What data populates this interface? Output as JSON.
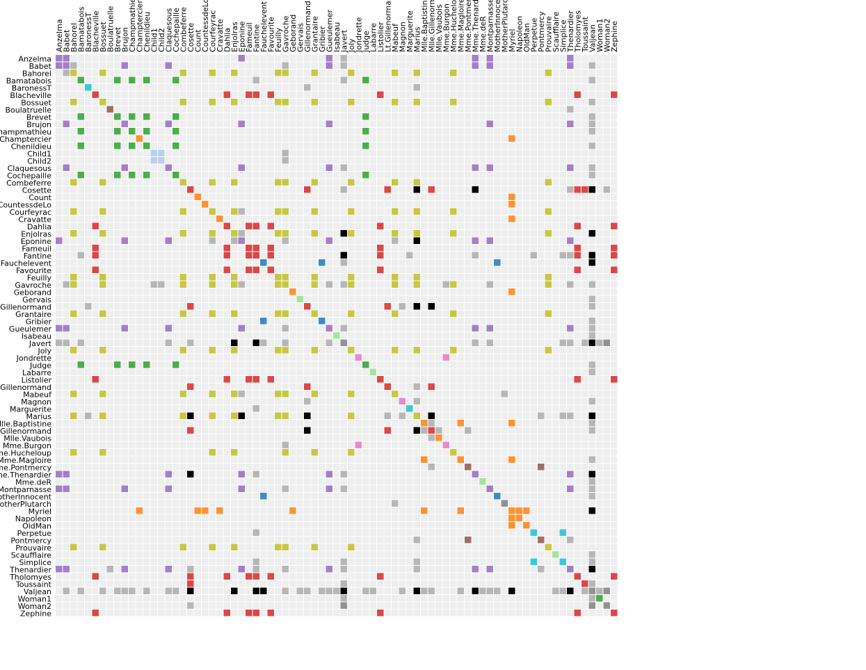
{
  "chart_data": {
    "type": "heatmap",
    "title": "",
    "labels": [
      "Anzelma",
      "Babet",
      "Bahorel",
      "Bamatabois",
      "BaronessT",
      "Blacheville",
      "Bossuet",
      "Boulatruelle",
      "Brevet",
      "Brujon",
      "Champmathieu",
      "Champtercier",
      "Chenildieu",
      "Child1",
      "Child2",
      "Claquesous",
      "Cochepaille",
      "Combeferre",
      "Cosette",
      "Count",
      "CountessdeLo",
      "Courfeyrac",
      "Cravatte",
      "Dahlia",
      "Enjolras",
      "Eponine",
      "Fameuil",
      "Fantine",
      "Fauchelevent",
      "Favourite",
      "Feuilly",
      "Gavroche",
      "Geborand",
      "Gervais",
      "Gillenormand",
      "Grantaire",
      "Gribier",
      "Gueulemer",
      "Isabeau",
      "Javert",
      "Joly",
      "Jondrette",
      "Judge",
      "Labarre",
      "Listolier",
      "Lt.Gillenormand",
      "Mabeuf",
      "Magnon",
      "Marguerite",
      "Marius",
      "Mlle.Baptistine",
      "Mlle.Gillenormand",
      "Mlle.Vaubois",
      "Mme.Burgon",
      "Mme.Hucheloup",
      "Mme.Magloire",
      "Mme.Pontmercy",
      "Mme.Thenardier",
      "Mme.deR",
      "Montparnasse",
      "MotherInnocent",
      "MotherPlutarch",
      "Myriel",
      "Napoleon",
      "OldMan",
      "Perpetue",
      "Pontmercy",
      "Prouvaire",
      "Scaufflaire",
      "Simplice",
      "Thenardier",
      "Tholomyes",
      "Toussaint",
      "Valjean",
      "Woman1",
      "Woman2",
      "Zephine"
    ],
    "groups": [
      4,
      4,
      8,
      2,
      9,
      3,
      8,
      5,
      2,
      4,
      2,
      1,
      2,
      10,
      10,
      4,
      2,
      8,
      3,
      1,
      1,
      8,
      1,
      3,
      8,
      4,
      3,
      3,
      0,
      3,
      8,
      8,
      1,
      11,
      3,
      8,
      0,
      4,
      11,
      7,
      8,
      6,
      2,
      11,
      3,
      3,
      8,
      6,
      9,
      8,
      1,
      3,
      1,
      6,
      8,
      1,
      5,
      4,
      11,
      4,
      0,
      7,
      1,
      1,
      1,
      9,
      5,
      8,
      11,
      9,
      4,
      3,
      3,
      7,
      2,
      7,
      3
    ],
    "group_colors": [
      "#1f77b4",
      "#ff7f0e",
      "#2ca02c",
      "#d62728",
      "#9467bd",
      "#8c564b",
      "#e377c2",
      "#7f7f7f",
      "#bcbd22",
      "#17becf",
      "#aec7e8",
      "#98df8a"
    ],
    "cross_group_color": "#a9a9a9",
    "empty_cell_color": "#eeeeee",
    "opacity_note": "",
    "links": [
      [
        0,
        0,
        1
      ],
      [
        0,
        1,
        1
      ],
      [
        0,
        25,
        1
      ],
      [
        0,
        37,
        1
      ],
      [
        0,
        39,
        1
      ],
      [
        0,
        57,
        1
      ],
      [
        0,
        59,
        1
      ],
      [
        0,
        70,
        1
      ],
      [
        1,
        1,
        1
      ],
      [
        1,
        2,
        1
      ],
      [
        1,
        9,
        1
      ],
      [
        1,
        15,
        1
      ],
      [
        1,
        31,
        1
      ],
      [
        1,
        37,
        1
      ],
      [
        1,
        39,
        1
      ],
      [
        1,
        57,
        1
      ],
      [
        1,
        59,
        1
      ],
      [
        1,
        70,
        1
      ],
      [
        1,
        73,
        1
      ],
      [
        2,
        2,
        1
      ],
      [
        2,
        6,
        1
      ],
      [
        2,
        17,
        1
      ],
      [
        2,
        21,
        1
      ],
      [
        2,
        24,
        1
      ],
      [
        2,
        30,
        1
      ],
      [
        2,
        31,
        1
      ],
      [
        2,
        35,
        1
      ],
      [
        2,
        40,
        1
      ],
      [
        2,
        46,
        1
      ],
      [
        2,
        49,
        1
      ],
      [
        2,
        54,
        1
      ],
      [
        2,
        67,
        1
      ],
      [
        3,
        3,
        1
      ],
      [
        3,
        8,
        1
      ],
      [
        3,
        10,
        1
      ],
      [
        3,
        12,
        1
      ],
      [
        3,
        16,
        1
      ],
      [
        3,
        27,
        1
      ],
      [
        3,
        39,
        1
      ],
      [
        3,
        42,
        1
      ],
      [
        3,
        73,
        1
      ],
      [
        4,
        4,
        1
      ],
      [
        4,
        34,
        1
      ],
      [
        4,
        49,
        1
      ],
      [
        5,
        5,
        1
      ],
      [
        5,
        23,
        1
      ],
      [
        5,
        26,
        1
      ],
      [
        5,
        27,
        1
      ],
      [
        5,
        29,
        1
      ],
      [
        5,
        44,
        1
      ],
      [
        5,
        71,
        1
      ],
      [
        5,
        76,
        1
      ],
      [
        6,
        6,
        1
      ],
      [
        6,
        17,
        1
      ],
      [
        6,
        21,
        1
      ],
      [
        6,
        24,
        1
      ],
      [
        6,
        30,
        1
      ],
      [
        6,
        31,
        1
      ],
      [
        6,
        35,
        1
      ],
      [
        6,
        40,
        1
      ],
      [
        6,
        46,
        1
      ],
      [
        6,
        49,
        1
      ],
      [
        6,
        54,
        1
      ],
      [
        6,
        67,
        1
      ],
      [
        6,
        73,
        1
      ],
      [
        7,
        7,
        1
      ],
      [
        7,
        70,
        1
      ],
      [
        8,
        8,
        1
      ],
      [
        8,
        10,
        1
      ],
      [
        8,
        12,
        1
      ],
      [
        8,
        16,
        1
      ],
      [
        8,
        42,
        1
      ],
      [
        8,
        73,
        1
      ],
      [
        9,
        9,
        1
      ],
      [
        9,
        15,
        1
      ],
      [
        9,
        25,
        1
      ],
      [
        9,
        37,
        1
      ],
      [
        9,
        59,
        1
      ],
      [
        9,
        70,
        1
      ],
      [
        9,
        73,
        1
      ],
      [
        10,
        10,
        1
      ],
      [
        10,
        12,
        1
      ],
      [
        10,
        16,
        1
      ],
      [
        10,
        42,
        1
      ],
      [
        10,
        73,
        1
      ],
      [
        11,
        11,
        1
      ],
      [
        11,
        62,
        1
      ],
      [
        12,
        12,
        1
      ],
      [
        12,
        16,
        1
      ],
      [
        12,
        42,
        1
      ],
      [
        12,
        73,
        1
      ],
      [
        13,
        13,
        1
      ],
      [
        13,
        14,
        1
      ],
      [
        13,
        31,
        1
      ],
      [
        14,
        14,
        1
      ],
      [
        14,
        31,
        1
      ],
      [
        15,
        15,
        1
      ],
      [
        15,
        25,
        1
      ],
      [
        15,
        37,
        1
      ],
      [
        15,
        39,
        1
      ],
      [
        15,
        57,
        1
      ],
      [
        15,
        59,
        1
      ],
      [
        15,
        70,
        1
      ],
      [
        15,
        73,
        1
      ],
      [
        16,
        16,
        1
      ],
      [
        16,
        42,
        1
      ],
      [
        16,
        73,
        1
      ],
      [
        17,
        17,
        1
      ],
      [
        17,
        21,
        1
      ],
      [
        17,
        24,
        1
      ],
      [
        17,
        30,
        1
      ],
      [
        17,
        31,
        1
      ],
      [
        17,
        35,
        1
      ],
      [
        17,
        40,
        1
      ],
      [
        17,
        46,
        1
      ],
      [
        17,
        49,
        1
      ],
      [
        17,
        67,
        1
      ],
      [
        18,
        18,
        1
      ],
      [
        18,
        34,
        1
      ],
      [
        18,
        39,
        1
      ],
      [
        18,
        45,
        1
      ],
      [
        18,
        49,
        5
      ],
      [
        18,
        51,
        1
      ],
      [
        18,
        57,
        5
      ],
      [
        18,
        70,
        1
      ],
      [
        18,
        71,
        1
      ],
      [
        18,
        72,
        1
      ],
      [
        18,
        73,
        5
      ],
      [
        18,
        75,
        1
      ],
      [
        19,
        19,
        1
      ],
      [
        19,
        62,
        1
      ],
      [
        20,
        20,
        1
      ],
      [
        20,
        62,
        1
      ],
      [
        21,
        21,
        1
      ],
      [
        21,
        24,
        1
      ],
      [
        21,
        25,
        1
      ],
      [
        21,
        30,
        1
      ],
      [
        21,
        31,
        1
      ],
      [
        21,
        35,
        1
      ],
      [
        21,
        40,
        1
      ],
      [
        21,
        46,
        1
      ],
      [
        21,
        49,
        1
      ],
      [
        21,
        54,
        1
      ],
      [
        21,
        67,
        1
      ],
      [
        22,
        22,
        1
      ],
      [
        22,
        62,
        1
      ],
      [
        23,
        23,
        1
      ],
      [
        23,
        26,
        1
      ],
      [
        23,
        27,
        1
      ],
      [
        23,
        29,
        1
      ],
      [
        23,
        44,
        1
      ],
      [
        23,
        71,
        1
      ],
      [
        23,
        76,
        1
      ],
      [
        24,
        24,
        1
      ],
      [
        24,
        25,
        1
      ],
      [
        24,
        30,
        1
      ],
      [
        24,
        31,
        1
      ],
      [
        24,
        35,
        1
      ],
      [
        24,
        39,
        5
      ],
      [
        24,
        40,
        1
      ],
      [
        24,
        46,
        1
      ],
      [
        24,
        49,
        1
      ],
      [
        24,
        54,
        1
      ],
      [
        24,
        67,
        1
      ],
      [
        24,
        73,
        5
      ],
      [
        25,
        25,
        1
      ],
      [
        25,
        31,
        1
      ],
      [
        25,
        37,
        1
      ],
      [
        25,
        46,
        1
      ],
      [
        25,
        49,
        5
      ],
      [
        25,
        57,
        1
      ],
      [
        25,
        59,
        1
      ],
      [
        25,
        70,
        1
      ],
      [
        26,
        26,
        1
      ],
      [
        26,
        27,
        1
      ],
      [
        26,
        29,
        1
      ],
      [
        26,
        44,
        1
      ],
      [
        26,
        71,
        1
      ],
      [
        26,
        76,
        1
      ],
      [
        27,
        27,
        1
      ],
      [
        27,
        29,
        1
      ],
      [
        27,
        39,
        5
      ],
      [
        27,
        44,
        1
      ],
      [
        27,
        48,
        1
      ],
      [
        27,
        57,
        1
      ],
      [
        27,
        65,
        1
      ],
      [
        27,
        69,
        1
      ],
      [
        27,
        70,
        1
      ],
      [
        27,
        71,
        1
      ],
      [
        27,
        73,
        5
      ],
      [
        27,
        76,
        1
      ],
      [
        28,
        28,
        1
      ],
      [
        28,
        36,
        1
      ],
      [
        28,
        39,
        1
      ],
      [
        28,
        60,
        1
      ],
      [
        28,
        73,
        5
      ],
      [
        29,
        29,
        1
      ],
      [
        29,
        44,
        1
      ],
      [
        29,
        71,
        1
      ],
      [
        29,
        76,
        1
      ],
      [
        30,
        30,
        1
      ],
      [
        30,
        31,
        1
      ],
      [
        30,
        35,
        1
      ],
      [
        30,
        40,
        1
      ],
      [
        30,
        46,
        1
      ],
      [
        30,
        49,
        1
      ],
      [
        30,
        67,
        1
      ],
      [
        31,
        31,
        1
      ],
      [
        31,
        35,
        1
      ],
      [
        31,
        37,
        1
      ],
      [
        31,
        39,
        1
      ],
      [
        31,
        40,
        1
      ],
      [
        31,
        46,
        1
      ],
      [
        31,
        49,
        1
      ],
      [
        31,
        53,
        1
      ],
      [
        31,
        54,
        1
      ],
      [
        31,
        59,
        1
      ],
      [
        31,
        67,
        1
      ],
      [
        31,
        70,
        1
      ],
      [
        31,
        73,
        1
      ],
      [
        32,
        32,
        1
      ],
      [
        32,
        62,
        1
      ],
      [
        33,
        33,
        1
      ],
      [
        33,
        73,
        1
      ],
      [
        34,
        34,
        1
      ],
      [
        34,
        45,
        1
      ],
      [
        34,
        47,
        1
      ],
      [
        34,
        49,
        5
      ],
      [
        34,
        51,
        5
      ],
      [
        34,
        73,
        1
      ],
      [
        35,
        35,
        1
      ],
      [
        35,
        40,
        1
      ],
      [
        35,
        46,
        1
      ],
      [
        35,
        54,
        1
      ],
      [
        35,
        67,
        1
      ],
      [
        36,
        36,
        1
      ],
      [
        36,
        73,
        1
      ],
      [
        37,
        37,
        1
      ],
      [
        37,
        39,
        1
      ],
      [
        37,
        57,
        1
      ],
      [
        37,
        59,
        1
      ],
      [
        37,
        70,
        1
      ],
      [
        37,
        73,
        1
      ],
      [
        38,
        38,
        1
      ],
      [
        38,
        73,
        1
      ],
      [
        39,
        39,
        1
      ],
      [
        39,
        57,
        1
      ],
      [
        39,
        59,
        1
      ],
      [
        39,
        69,
        1
      ],
      [
        39,
        70,
        1
      ],
      [
        39,
        72,
        1
      ],
      [
        39,
        73,
        5
      ],
      [
        39,
        74,
        1
      ],
      [
        39,
        75,
        1
      ],
      [
        40,
        40,
        1
      ],
      [
        40,
        46,
        1
      ],
      [
        40,
        49,
        1
      ],
      [
        40,
        54,
        1
      ],
      [
        40,
        67,
        1
      ],
      [
        41,
        41,
        1
      ],
      [
        41,
        53,
        1
      ],
      [
        42,
        42,
        1
      ],
      [
        42,
        73,
        1
      ],
      [
        43,
        43,
        1
      ],
      [
        43,
        73,
        1
      ],
      [
        44,
        44,
        1
      ],
      [
        44,
        71,
        1
      ],
      [
        44,
        76,
        1
      ],
      [
        45,
        45,
        1
      ],
      [
        45,
        49,
        1
      ],
      [
        45,
        51,
        1
      ],
      [
        46,
        46,
        1
      ],
      [
        46,
        61,
        1
      ],
      [
        47,
        47,
        1
      ],
      [
        47,
        49,
        1
      ],
      [
        47,
        73,
        1
      ],
      [
        48,
        48,
        1
      ],
      [
        49,
        49,
        1
      ],
      [
        49,
        51,
        5
      ],
      [
        49,
        66,
        1
      ],
      [
        49,
        69,
        1
      ],
      [
        49,
        70,
        1
      ],
      [
        49,
        73,
        5
      ],
      [
        50,
        50,
        1
      ],
      [
        50,
        51,
        1
      ],
      [
        50,
        55,
        1
      ],
      [
        50,
        62,
        1
      ],
      [
        50,
        73,
        1
      ],
      [
        51,
        51,
        1
      ],
      [
        51,
        52,
        1
      ],
      [
        51,
        56,
        1
      ],
      [
        51,
        73,
        1
      ],
      [
        52,
        52,
        1
      ],
      [
        53,
        53,
        1
      ],
      [
        54,
        54,
        1
      ],
      [
        55,
        55,
        1
      ],
      [
        55,
        62,
        1
      ],
      [
        55,
        73,
        1
      ],
      [
        56,
        56,
        1
      ],
      [
        56,
        66,
        1
      ],
      [
        57,
        57,
        1
      ],
      [
        57,
        70,
        1
      ],
      [
        57,
        73,
        5
      ],
      [
        58,
        58,
        1
      ],
      [
        58,
        73,
        1
      ],
      [
        59,
        59,
        1
      ],
      [
        59,
        70,
        1
      ],
      [
        59,
        73,
        1
      ],
      [
        60,
        60,
        1
      ],
      [
        60,
        73,
        1
      ],
      [
        61,
        61,
        1
      ],
      [
        62,
        62,
        1
      ],
      [
        62,
        63,
        1
      ],
      [
        62,
        64,
        1
      ],
      [
        62,
        73,
        5
      ],
      [
        63,
        63,
        1
      ],
      [
        64,
        64,
        1
      ],
      [
        65,
        65,
        1
      ],
      [
        65,
        69,
        1
      ],
      [
        66,
        66,
        1
      ],
      [
        66,
        70,
        1
      ],
      [
        67,
        67,
        1
      ],
      [
        68,
        68,
        1
      ],
      [
        68,
        73,
        1
      ],
      [
        69,
        69,
        1
      ],
      [
        69,
        73,
        1
      ],
      [
        70,
        70,
        1
      ],
      [
        70,
        73,
        5
      ],
      [
        71,
        71,
        1
      ],
      [
        71,
        76,
        1
      ],
      [
        72,
        72,
        1
      ],
      [
        72,
        73,
        1
      ],
      [
        73,
        73,
        1
      ],
      [
        73,
        74,
        1
      ],
      [
        73,
        75,
        1
      ],
      [
        74,
        74,
        1
      ],
      [
        75,
        75,
        1
      ],
      [
        76,
        76,
        1
      ]
    ]
  }
}
